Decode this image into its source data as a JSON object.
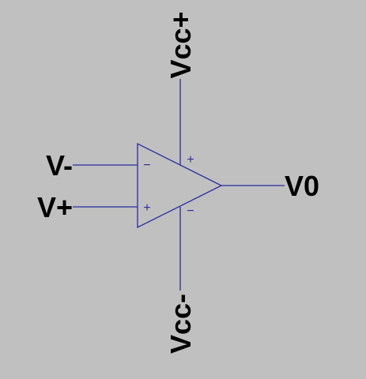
{
  "colors": {
    "background": "#c0c0c0",
    "wire": "#2a2aa0",
    "symbol": "#2a2aa0",
    "label": "#000000"
  },
  "labels": {
    "vcc_plus": "Vcc+",
    "vcc_minus": "Vcc-",
    "v_minus": "V-",
    "v_plus": "V+",
    "v_out": "V0"
  },
  "pin_marks": {
    "inverting": "−",
    "non_inverting": "+",
    "supply_positive": "+",
    "supply_negative": "−"
  }
}
